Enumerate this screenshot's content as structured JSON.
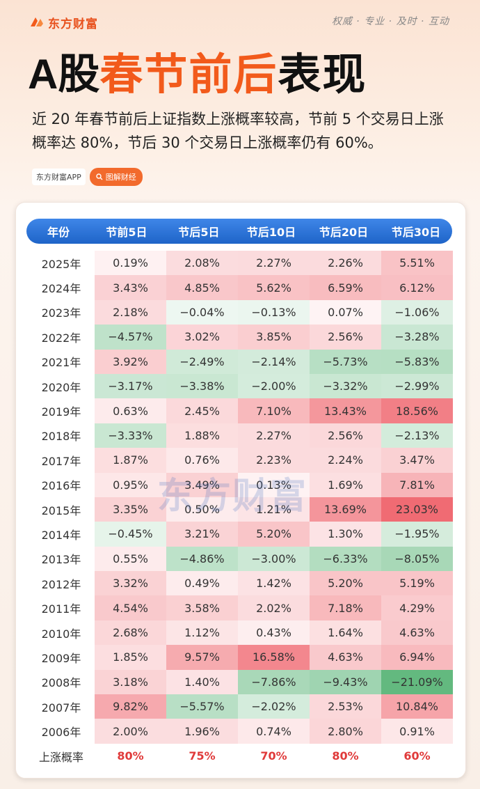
{
  "brand": {
    "name": "东方财富",
    "slogan": "权威 · 专业 · 及时 · 互动",
    "watermark": "东方财富"
  },
  "title": {
    "prefix": "A股",
    "highlight": "春节前后",
    "suffix": "表现"
  },
  "subtitle": "近 20 年春节前后上证指数上涨概率较高，节前 5 个交易日上涨概率达 80%，节后 30 个交易日上涨概率仍有 60%。",
  "tags": {
    "app": "东方财富APP",
    "button": "图解财经"
  },
  "colors": {
    "accent": "#f25a1b",
    "header": "#2d74da",
    "up": "#e03a3a",
    "down": "#2e9e4f"
  },
  "chart_data": {
    "type": "table",
    "title": "A股春节前后表现",
    "columns": [
      "年份",
      "节前5日",
      "节后5日",
      "节后10日",
      "节后20日",
      "节后30日"
    ],
    "rows": [
      {
        "year": "2025年",
        "values": [
          "0.19%",
          "2.08%",
          "2.27%",
          "2.26%",
          "5.51%"
        ]
      },
      {
        "year": "2024年",
        "values": [
          "3.43%",
          "4.85%",
          "5.62%",
          "6.59%",
          "6.12%"
        ]
      },
      {
        "year": "2023年",
        "values": [
          "2.18%",
          "−0.04%",
          "−0.13%",
          "0.07%",
          "−1.06%"
        ]
      },
      {
        "year": "2022年",
        "values": [
          "−4.57%",
          "3.02%",
          "3.85%",
          "2.56%",
          "−3.28%"
        ]
      },
      {
        "year": "2021年",
        "values": [
          "3.92%",
          "−2.49%",
          "−2.14%",
          "−5.73%",
          "−5.83%"
        ]
      },
      {
        "year": "2020年",
        "values": [
          "−3.17%",
          "−3.38%",
          "−2.00%",
          "−3.32%",
          "−2.99%"
        ]
      },
      {
        "year": "2019年",
        "values": [
          "0.63%",
          "2.45%",
          "7.10%",
          "13.43%",
          "18.56%"
        ]
      },
      {
        "year": "2018年",
        "values": [
          "−3.33%",
          "1.88%",
          "2.27%",
          "2.56%",
          "−2.13%"
        ]
      },
      {
        "year": "2017年",
        "values": [
          "1.87%",
          "0.76%",
          "2.23%",
          "2.24%",
          "3.47%"
        ]
      },
      {
        "year": "2016年",
        "values": [
          "0.95%",
          "3.49%",
          "0.13%",
          "1.69%",
          "7.81%"
        ]
      },
      {
        "year": "2015年",
        "values": [
          "3.35%",
          "0.50%",
          "1.21%",
          "13.69%",
          "23.03%"
        ]
      },
      {
        "year": "2014年",
        "values": [
          "−0.45%",
          "3.21%",
          "5.20%",
          "1.30%",
          "−1.95%"
        ]
      },
      {
        "year": "2013年",
        "values": [
          "0.55%",
          "−4.86%",
          "−3.00%",
          "−6.33%",
          "−8.05%"
        ]
      },
      {
        "year": "2012年",
        "values": [
          "3.32%",
          "0.49%",
          "1.42%",
          "5.20%",
          "5.19%"
        ]
      },
      {
        "year": "2011年",
        "values": [
          "4.54%",
          "3.58%",
          "2.02%",
          "7.18%",
          "4.29%"
        ]
      },
      {
        "year": "2010年",
        "values": [
          "2.68%",
          "1.12%",
          "0.43%",
          "1.64%",
          "4.63%"
        ]
      },
      {
        "year": "2009年",
        "values": [
          "1.85%",
          "9.57%",
          "16.58%",
          "4.63%",
          "6.94%"
        ]
      },
      {
        "year": "2008年",
        "values": [
          "3.18%",
          "1.40%",
          "−7.86%",
          "−9.43%",
          "−21.09%"
        ]
      },
      {
        "year": "2007年",
        "values": [
          "9.82%",
          "−5.57%",
          "−2.02%",
          "2.53%",
          "10.84%"
        ]
      },
      {
        "year": "2006年",
        "values": [
          "2.00%",
          "1.96%",
          "0.74%",
          "2.80%",
          "0.91%"
        ]
      }
    ],
    "summary": {
      "label": "上涨概率",
      "values": [
        "80%",
        "75%",
        "70%",
        "80%",
        "60%"
      ]
    }
  }
}
